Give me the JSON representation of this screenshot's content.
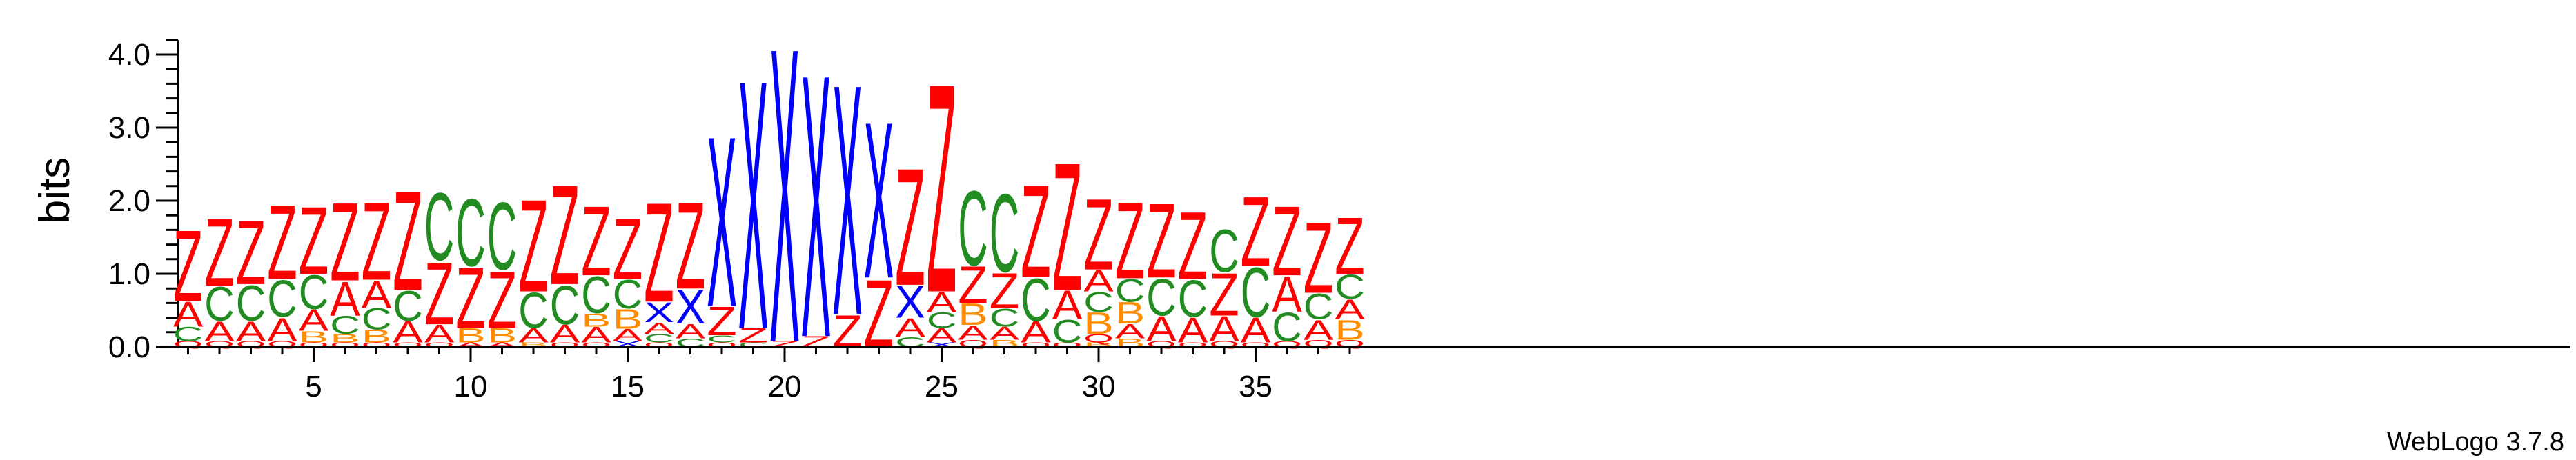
{
  "chart_data": {
    "type": "sequence-logo",
    "title": "",
    "ylabel": "bits",
    "xlabel": "",
    "ylim": [
      0,
      4.2
    ],
    "ytick_labels": [
      "0.0",
      "1.0",
      "2.0",
      "3.0",
      "4.0"
    ],
    "xtick_labels": [
      "5",
      "10",
      "15",
      "20",
      "25",
      "30",
      "35"
    ],
    "footer": "WebLogo 3.7.8",
    "colors": {
      "Z": "#ff0000",
      "X": "#0000ff",
      "C": "#228b22",
      "A": "#ff0000",
      "B": "#ff8c00",
      "Q": "#ff0000"
    },
    "positions": [
      {
        "pos": 1,
        "letters": [
          [
            "Q",
            0.08
          ],
          [
            "C",
            0.2
          ],
          [
            "A",
            0.35
          ],
          [
            "Z",
            1.0
          ]
        ]
      },
      {
        "pos": 2,
        "letters": [
          [
            "Q",
            0.08
          ],
          [
            "A",
            0.28
          ],
          [
            "C",
            0.48
          ],
          [
            "Z",
            0.95
          ]
        ]
      },
      {
        "pos": 3,
        "letters": [
          [
            "Q",
            0.08
          ],
          [
            "A",
            0.28
          ],
          [
            "C",
            0.5
          ],
          [
            "Z",
            0.9
          ]
        ]
      },
      {
        "pos": 4,
        "letters": [
          [
            "Q",
            0.08
          ],
          [
            "A",
            0.33
          ],
          [
            "C",
            0.52
          ],
          [
            "Z",
            1.05
          ]
        ]
      },
      {
        "pos": 5,
        "letters": [
          [
            "Q",
            0.06
          ],
          [
            "B",
            0.16
          ],
          [
            "A",
            0.3
          ],
          [
            "C",
            0.48
          ],
          [
            "Z",
            0.95
          ]
        ]
      },
      {
        "pos": 6,
        "letters": [
          [
            "Q",
            0.06
          ],
          [
            "B",
            0.12
          ],
          [
            "C",
            0.25
          ],
          [
            "A",
            0.48
          ],
          [
            "Z",
            1.1
          ]
        ]
      },
      {
        "pos": 7,
        "letters": [
          [
            "Q",
            0.06
          ],
          [
            "B",
            0.18
          ],
          [
            "C",
            0.3
          ],
          [
            "A",
            0.38
          ],
          [
            "Z",
            1.1
          ]
        ]
      },
      {
        "pos": 8,
        "letters": [
          [
            "Q",
            0.06
          ],
          [
            "A",
            0.3
          ],
          [
            "C",
            0.42
          ],
          [
            "Z",
            1.4
          ]
        ]
      },
      {
        "pos": 9,
        "letters": [
          [
            "Q",
            0.06
          ],
          [
            "A",
            0.25
          ],
          [
            "Z",
            0.88
          ],
          [
            "C",
            0.95
          ]
        ]
      },
      {
        "pos": 10,
        "letters": [
          [
            "A",
            0.06
          ],
          [
            "B",
            0.2
          ],
          [
            "Z",
            0.85
          ],
          [
            "C",
            0.95
          ]
        ]
      },
      {
        "pos": 11,
        "letters": [
          [
            "A",
            0.06
          ],
          [
            "B",
            0.2
          ],
          [
            "Z",
            0.8
          ],
          [
            "C",
            0.95
          ]
        ]
      },
      {
        "pos": 12,
        "letters": [
          [
            "B",
            0.06
          ],
          [
            "A",
            0.2
          ],
          [
            "C",
            0.5
          ],
          [
            "Z",
            1.3
          ]
        ]
      },
      {
        "pos": 13,
        "letters": [
          [
            "Q",
            0.06
          ],
          [
            "A",
            0.25
          ],
          [
            "C",
            0.55
          ],
          [
            "Z",
            1.4
          ]
        ]
      },
      {
        "pos": 14,
        "letters": [
          [
            "Q",
            0.06
          ],
          [
            "A",
            0.22
          ],
          [
            "B",
            0.18
          ],
          [
            "C",
            0.52
          ],
          [
            "Z",
            0.98
          ]
        ]
      },
      {
        "pos": 15,
        "letters": [
          [
            "X",
            0.08
          ],
          [
            "A",
            0.17
          ],
          [
            "B",
            0.28
          ],
          [
            "C",
            0.4
          ],
          [
            "Z",
            0.85
          ]
        ]
      },
      {
        "pos": 16,
        "letters": [
          [
            "Q",
            0.06
          ],
          [
            "C",
            0.12
          ],
          [
            "A",
            0.16
          ],
          [
            "X",
            0.28
          ],
          [
            "Z",
            1.4
          ]
        ]
      },
      {
        "pos": 17,
        "letters": [
          [
            "C",
            0.12
          ],
          [
            "A",
            0.2
          ],
          [
            "X",
            0.48
          ],
          [
            "Z",
            1.22
          ]
        ]
      },
      {
        "pos": 18,
        "letters": [
          [
            "Q",
            0.06
          ],
          [
            "C",
            0.1
          ],
          [
            "Z",
            0.4
          ],
          [
            "X",
            2.4
          ]
        ]
      },
      {
        "pos": 19,
        "letters": [
          [
            "C",
            0.06
          ],
          [
            "Z",
            0.2
          ],
          [
            "X",
            3.5
          ]
        ]
      },
      {
        "pos": 20,
        "letters": [
          [
            "Z",
            0.08
          ],
          [
            "X",
            4.15
          ]
        ]
      },
      {
        "pos": 21,
        "letters": [
          [
            "Z",
            0.15
          ],
          [
            "X",
            3.7
          ]
        ]
      },
      {
        "pos": 22,
        "letters": [
          [
            "Z",
            0.45
          ],
          [
            "X",
            3.25
          ]
        ]
      },
      {
        "pos": 23,
        "letters": [
          [
            "Z",
            0.95
          ],
          [
            "X",
            2.2
          ]
        ]
      },
      {
        "pos": 24,
        "letters": [
          [
            "C",
            0.14
          ],
          [
            "A",
            0.26
          ],
          [
            "X",
            0.45
          ],
          [
            "Z",
            1.65
          ]
        ]
      },
      {
        "pos": 25,
        "letters": [
          [
            "X",
            0.06
          ],
          [
            "A",
            0.2
          ],
          [
            "C",
            0.22
          ],
          [
            "A",
            0.28
          ],
          [
            "Z",
            2.94
          ]
        ]
      },
      {
        "pos": 26,
        "letters": [
          [
            "Q",
            0.1
          ],
          [
            "A",
            0.2
          ],
          [
            "B",
            0.3
          ],
          [
            "Z",
            0.52
          ],
          [
            "C",
            1.05
          ]
        ]
      },
      {
        "pos": 27,
        "letters": [
          [
            "B",
            0.1
          ],
          [
            "A",
            0.18
          ],
          [
            "C",
            0.25
          ],
          [
            "Z",
            0.5
          ],
          [
            "C",
            1.1
          ]
        ]
      },
      {
        "pos": 28,
        "letters": [
          [
            "Q",
            0.06
          ],
          [
            "A",
            0.3
          ],
          [
            "C",
            0.6
          ],
          [
            "Z",
            1.3
          ]
        ]
      },
      {
        "pos": 29,
        "letters": [
          [
            "Q",
            0.06
          ],
          [
            "C",
            0.32
          ],
          [
            "A",
            0.4
          ],
          [
            "Z",
            1.8
          ]
        ]
      },
      {
        "pos": 30,
        "letters": [
          [
            "B",
            0.06
          ],
          [
            "Q",
            0.12
          ],
          [
            "B",
            0.3
          ],
          [
            "C",
            0.28
          ],
          [
            "A",
            0.3
          ],
          [
            "Z",
            1.0
          ]
        ]
      },
      {
        "pos": 31,
        "letters": [
          [
            "B",
            0.12
          ],
          [
            "A",
            0.2
          ],
          [
            "B",
            0.3
          ],
          [
            "C",
            0.32
          ],
          [
            "Z",
            1.08
          ]
        ]
      },
      {
        "pos": 32,
        "letters": [
          [
            "Q",
            0.08
          ],
          [
            "A",
            0.35
          ],
          [
            "C",
            0.52
          ],
          [
            "Z",
            1.05
          ]
        ]
      },
      {
        "pos": 33,
        "letters": [
          [
            "Q",
            0.06
          ],
          [
            "A",
            0.35
          ],
          [
            "C",
            0.52
          ],
          [
            "Z",
            0.95
          ]
        ]
      },
      {
        "pos": 34,
        "letters": [
          [
            "Q",
            0.08
          ],
          [
            "A",
            0.35
          ],
          [
            "Z",
            0.6
          ],
          [
            "C",
            0.6
          ]
        ]
      },
      {
        "pos": 35,
        "letters": [
          [
            "Q",
            0.06
          ],
          [
            "A",
            0.35
          ],
          [
            "C",
            0.7
          ],
          [
            "Z",
            0.98
          ]
        ]
      },
      {
        "pos": 36,
        "letters": [
          [
            "Q",
            0.08
          ],
          [
            "C",
            0.4
          ],
          [
            "A",
            0.5
          ],
          [
            "Z",
            0.98
          ]
        ]
      },
      {
        "pos": 37,
        "letters": [
          [
            "Q",
            0.1
          ],
          [
            "A",
            0.28
          ],
          [
            "C",
            0.36
          ],
          [
            "Z",
            1.0
          ]
        ]
      },
      {
        "pos": 38,
        "letters": [
          [
            "Q",
            0.1
          ],
          [
            "B",
            0.28
          ],
          [
            "A",
            0.28
          ],
          [
            "C",
            0.34
          ],
          [
            "Z",
            0.8
          ]
        ]
      }
    ]
  }
}
